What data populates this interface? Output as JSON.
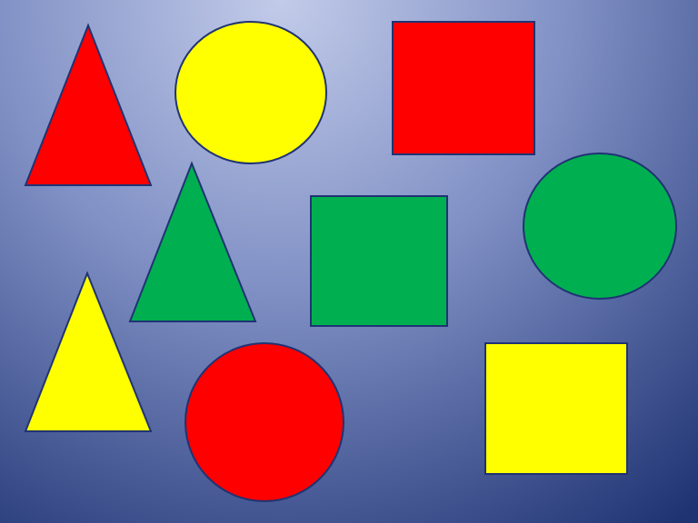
{
  "slide": {
    "background_center": "#c2cbe9",
    "background_edge": "#1f3373",
    "outline": "#1f3373"
  },
  "shapes": [
    {
      "kind": "triangle",
      "color_name": "red",
      "fill": "#ff0000"
    },
    {
      "kind": "circle",
      "color_name": "yellow",
      "fill": "#ffff00"
    },
    {
      "kind": "square",
      "color_name": "red",
      "fill": "#ff0000"
    },
    {
      "kind": "triangle",
      "color_name": "green",
      "fill": "#00b050"
    },
    {
      "kind": "square",
      "color_name": "green",
      "fill": "#00b050"
    },
    {
      "kind": "circle",
      "color_name": "green",
      "fill": "#00b050"
    },
    {
      "kind": "triangle",
      "color_name": "yellow",
      "fill": "#ffff00"
    },
    {
      "kind": "circle",
      "color_name": "red",
      "fill": "#ff0000"
    },
    {
      "kind": "square",
      "color_name": "yellow",
      "fill": "#ffff00"
    }
  ]
}
